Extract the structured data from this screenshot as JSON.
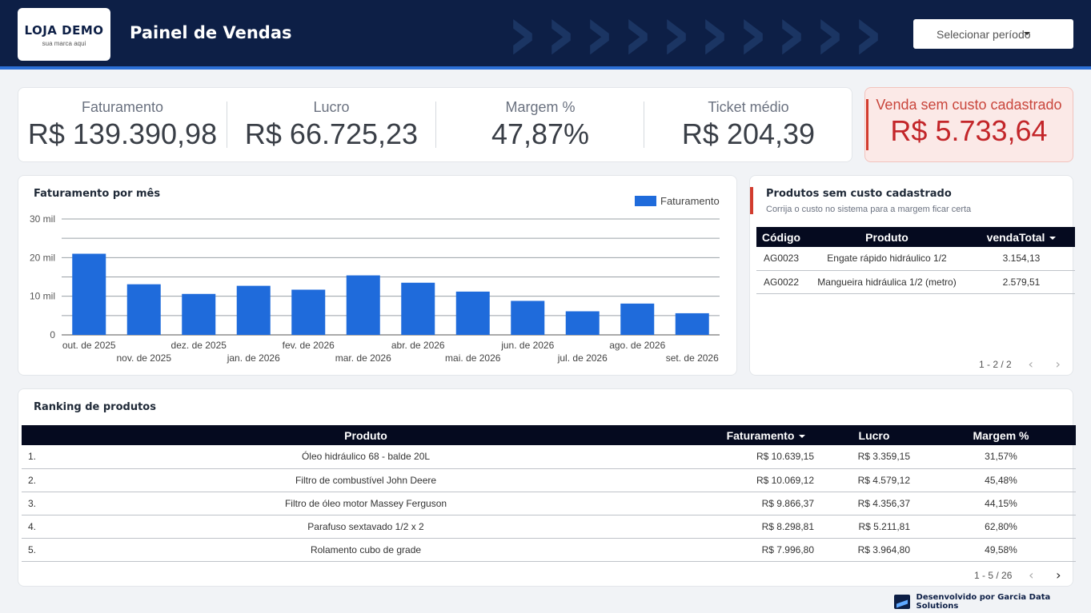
{
  "header": {
    "logo_title": "LOJA DEMO",
    "logo_subtitle": "sua marca aqui",
    "title": "Painel de Vendas",
    "period_label": "Selecionar período"
  },
  "kpis": [
    {
      "label": "Faturamento",
      "value": "R$ 139.390,98"
    },
    {
      "label": "Lucro",
      "value": "R$ 66.725,23"
    },
    {
      "label": "Margem %",
      "value": "47,87%"
    },
    {
      "label": "Ticket médio",
      "value": "R$ 204,39"
    }
  ],
  "alert": {
    "label": "Venda sem custo cadastrado",
    "value": "R$ 5.733,64"
  },
  "chart_data": {
    "type": "bar",
    "title": "Faturamento por mês",
    "xlabel": "",
    "ylabel": "",
    "categories": [
      "out. de 2025",
      "nov. de 2025",
      "dez. de 2025",
      "jan. de 2026",
      "fev. de 2026",
      "mar. de 2026",
      "abr. de 2026",
      "mai. de 2026",
      "jun. de 2026",
      "jul. de 2026",
      "ago. de 2026",
      "set. de 2026"
    ],
    "series": [
      {
        "name": "Faturamento",
        "values": [
          21000,
          13100,
          10600,
          12700,
          11700,
          15400,
          13500,
          11200,
          8800,
          6100,
          8100,
          5600
        ],
        "color": "#1f6bdb"
      }
    ],
    "ylim": [
      0,
      30000
    ],
    "yticks": [
      0,
      10000,
      20000,
      30000
    ],
    "ytick_labels": [
      "0",
      "10 mil",
      "20 mil",
      "30 mil"
    ],
    "grid": true,
    "legend": "top-right"
  },
  "missing_cost": {
    "title": "Produtos sem custo cadastrado",
    "subtitle": "Corrija o custo no sistema para a margem ficar certa",
    "columns": [
      "Código",
      "Produto",
      "vendaTotal"
    ],
    "rows": [
      {
        "code": "AG0023",
        "product": "Engate rápido hidráulico 1/2",
        "total": "3.154,13"
      },
      {
        "code": "AG0022",
        "product": "Mangueira hidráulica 1/2 (metro)",
        "total": "2.579,51"
      }
    ],
    "pager": "1 - 2 / 2"
  },
  "ranking": {
    "title": "Ranking de produtos",
    "columns": [
      "Produto",
      "Faturamento",
      "Lucro",
      "Margem %"
    ],
    "rows": [
      {
        "n": "1.",
        "product": "Óleo hidráulico 68 - balde 20L",
        "revenue": "R$ 10.639,15",
        "profit": "R$ 3.359,15",
        "margin": "31,57%"
      },
      {
        "n": "2.",
        "product": "Filtro de combustível John Deere",
        "revenue": "R$ 10.069,12",
        "profit": "R$ 4.579,12",
        "margin": "45,48%"
      },
      {
        "n": "3.",
        "product": "Filtro de óleo motor Massey Ferguson",
        "revenue": "R$ 9.866,37",
        "profit": "R$ 4.356,37",
        "margin": "44,15%"
      },
      {
        "n": "4.",
        "product": "Parafuso sextavado 1/2 x 2",
        "revenue": "R$ 8.298,81",
        "profit": "R$ 5.211,81",
        "margin": "62,80%"
      },
      {
        "n": "5.",
        "product": "Rolamento cubo de grade",
        "revenue": "R$ 7.996,80",
        "profit": "R$ 3.964,80",
        "margin": "49,58%"
      }
    ],
    "pager": "1 - 5 / 26"
  },
  "footer": {
    "text": "Desenvolvido por Garcia Data Solutions"
  },
  "icons": {
    "prev": "chevron-left-icon",
    "next": "chevron-right-icon",
    "caret": "caret-down-icon"
  }
}
